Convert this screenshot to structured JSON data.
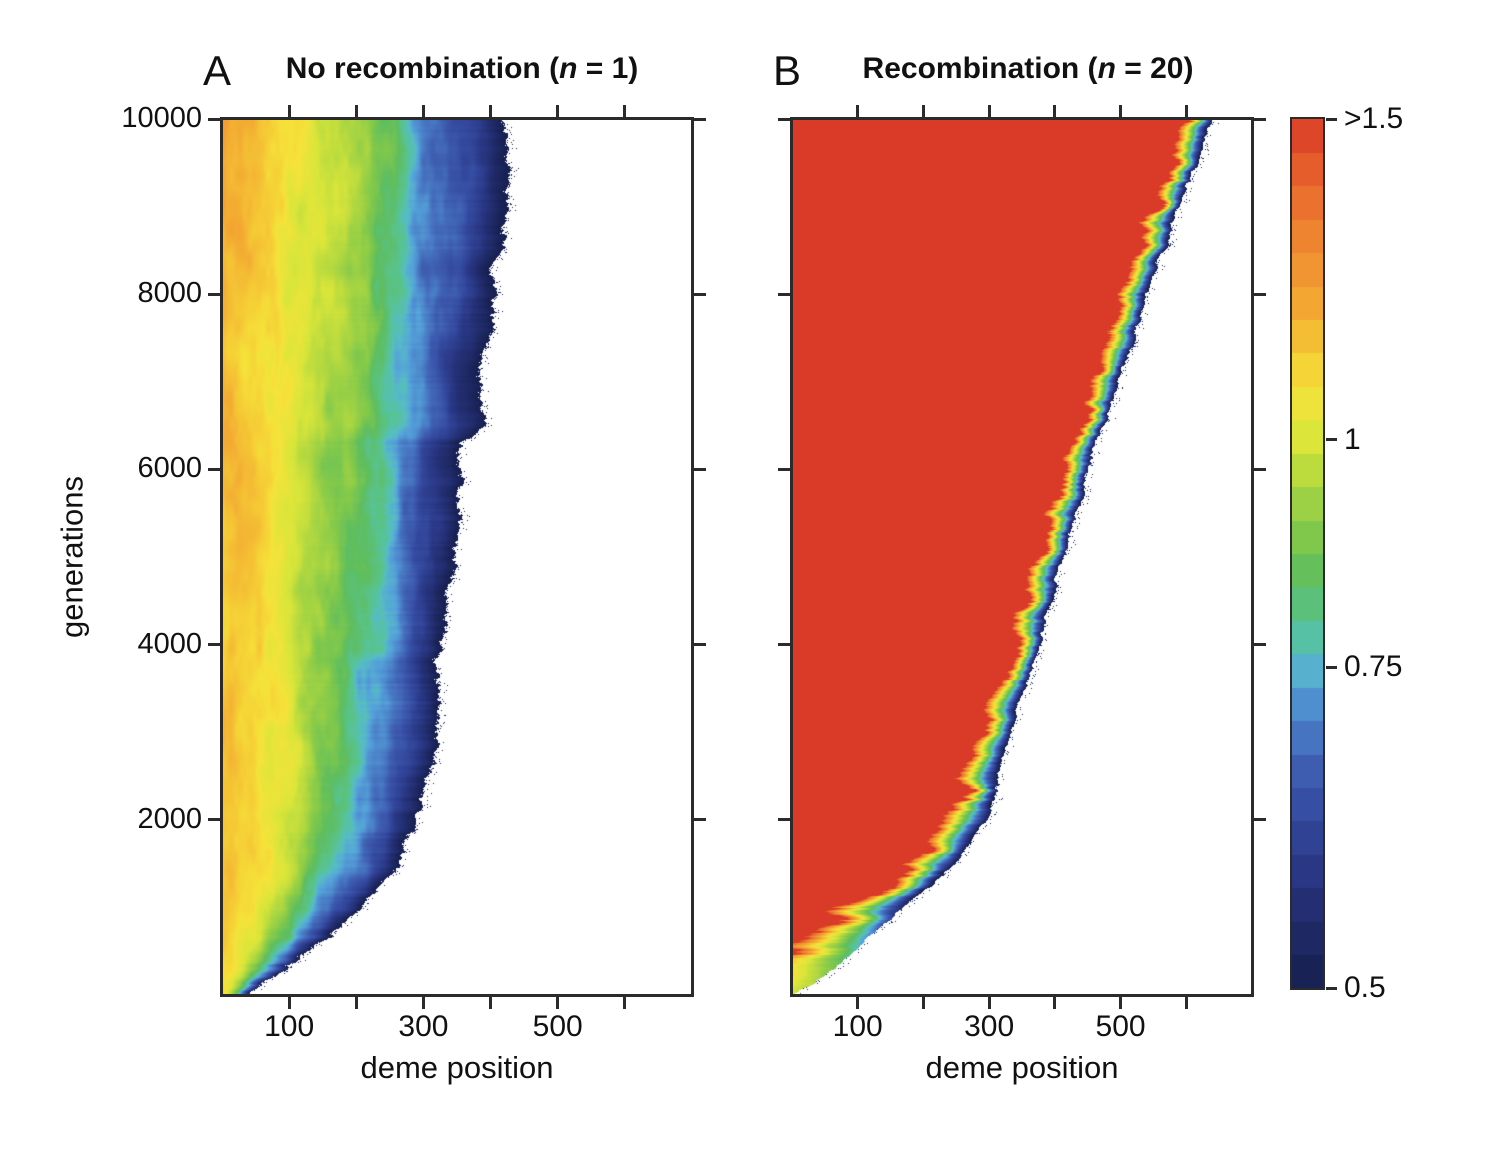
{
  "figure": {
    "y_label": "generations",
    "panels": [
      {
        "letter": "A",
        "title_prefix": "No recombination (",
        "title_italic": "n",
        "title_suffix": " = 1)",
        "x_label": "deme position"
      },
      {
        "letter": "B",
        "title_prefix": "Recombination (",
        "title_italic": "n",
        "title_suffix": " = 20)",
        "x_label": "deme position"
      }
    ]
  },
  "chart_data": {
    "type": "heatmap",
    "description": "Two space-time heatmaps of a range expansion: colored region = occupied demes over generations, color = value on the 0.5 to >1.5 scale shown in the shared colorbar; white = unoccupied.",
    "panels": [
      {
        "id": "A",
        "title": "No recombination (n = 1)",
        "xlabel": "deme position",
        "ylabel": "generations",
        "x_range": [
          0,
          700
        ],
        "y_range": [
          0,
          10000
        ],
        "x_tick_step": 100,
        "x_labeled_ticks": [
          100,
          300,
          500
        ],
        "y_labeled_ticks": [
          2000,
          4000,
          6000,
          8000,
          10000
        ],
        "fill": "gradient",
        "origin_value": 1.13,
        "value_drop": 0.63,
        "falloff_exponent": 1.3,
        "top_warm_shift": 0.03,
        "mottle_amplitude": 0.17,
        "edge_jitter": [
          13,
          6
        ],
        "seed": 3,
        "front_curve_gen_deme": [
          [
            0,
            42
          ],
          [
            250,
            95
          ],
          [
            500,
            132
          ],
          [
            800,
            178
          ],
          [
            1000,
            208
          ],
          [
            1400,
            252
          ],
          [
            2000,
            290
          ],
          [
            2600,
            312
          ],
          [
            3200,
            322
          ],
          [
            4000,
            328
          ],
          [
            4600,
            338
          ],
          [
            5200,
            352
          ],
          [
            5800,
            358
          ],
          [
            6300,
            352
          ],
          [
            6500,
            388
          ],
          [
            7000,
            392
          ],
          [
            7600,
            402
          ],
          [
            8200,
            408
          ],
          [
            8800,
            420
          ],
          [
            9400,
            428
          ],
          [
            10000,
            420
          ]
        ]
      },
      {
        "id": "B",
        "title": "Recombination (n = 20)",
        "xlabel": "deme position",
        "ylabel": "generations",
        "x_range": [
          0,
          700
        ],
        "y_range": [
          0,
          10000
        ],
        "x_tick_step": 100,
        "x_labeled_ticks": [
          100,
          300,
          500
        ],
        "y_labeled_ticks": [
          2000,
          4000,
          6000,
          8000,
          10000
        ],
        "fill": "band",
        "interior_value": 1.55,
        "band_width": {
          "base": 35,
          "extra": 125,
          "decay_gen": 1100
        },
        "band_exponent": 0.62,
        "depth_ramp": {
          "base": 0.5,
          "per_gen": 2200
        },
        "mottle_amplitude": 0.05,
        "edge_jitter": [
          8,
          4
        ],
        "seed": 11,
        "front_curve_gen_deme": [
          [
            0,
            5
          ],
          [
            300,
            62
          ],
          [
            500,
            95
          ],
          [
            800,
            140
          ],
          [
            1000,
            171
          ],
          [
            1300,
            220
          ],
          [
            1500,
            247
          ],
          [
            1800,
            275
          ],
          [
            2000,
            292
          ],
          [
            2300,
            308
          ],
          [
            2500,
            315
          ],
          [
            3000,
            330
          ],
          [
            3500,
            352
          ],
          [
            4000,
            376
          ],
          [
            4500,
            396
          ],
          [
            5000,
            414
          ],
          [
            5500,
            432
          ],
          [
            6000,
            451
          ],
          [
            6500,
            473
          ],
          [
            7000,
            497
          ],
          [
            7500,
            520
          ],
          [
            8000,
            542
          ],
          [
            8500,
            565
          ],
          [
            9000,
            588
          ],
          [
            9500,
            615
          ],
          [
            10000,
            640
          ]
        ]
      }
    ],
    "colorbar": {
      "scale": "log",
      "min": 0.5,
      "max": 1.5,
      "tick_labels": [
        ">1.5",
        "1",
        "0.75",
        "0.5"
      ],
      "tick_values": [
        1.5,
        1,
        0.75,
        0.5
      ],
      "steps": 26,
      "color_stops": [
        [
          0.5,
          "#161f4e"
        ],
        [
          0.54,
          "#202b68"
        ],
        [
          0.58,
          "#2a3885"
        ],
        [
          0.62,
          "#34499e"
        ],
        [
          0.66,
          "#3f5fb2"
        ],
        [
          0.7,
          "#4b7fc8"
        ],
        [
          0.735,
          "#55a3da"
        ],
        [
          0.76,
          "#57bdc4"
        ],
        [
          0.79,
          "#58c494"
        ],
        [
          0.84,
          "#5fbe5f"
        ],
        [
          0.89,
          "#84ca4b"
        ],
        [
          0.95,
          "#b3d940"
        ],
        [
          1.0,
          "#d9e63a"
        ],
        [
          1.06,
          "#f5e33a"
        ],
        [
          1.12,
          "#f5c835"
        ],
        [
          1.2,
          "#f3a332"
        ],
        [
          1.3,
          "#ee8230"
        ],
        [
          1.4,
          "#e6602c"
        ],
        [
          1.5,
          "#da3b28"
        ]
      ]
    }
  }
}
